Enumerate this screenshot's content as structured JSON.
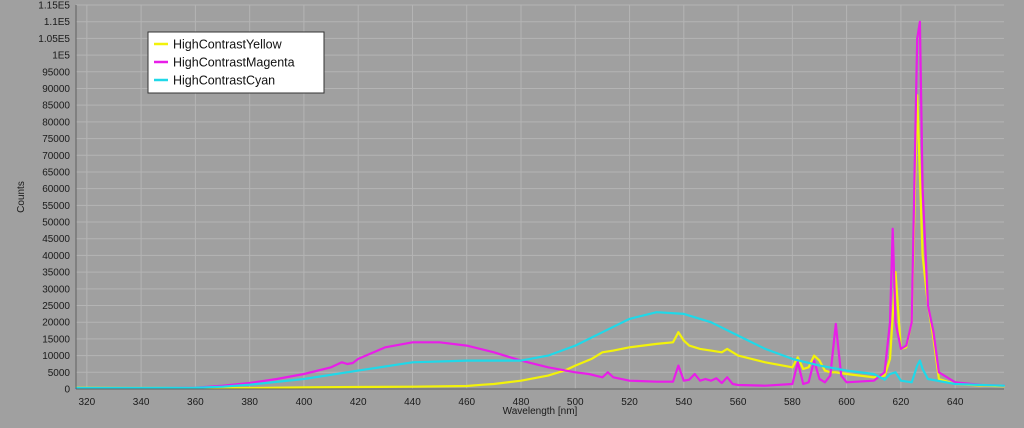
{
  "chart_data": {
    "type": "line",
    "title": "",
    "xlabel": "Wavelength [nm]",
    "ylabel": "Counts",
    "xlim": [
      316,
      658
    ],
    "ylim": [
      0,
      115000
    ],
    "grid": true,
    "legend_position": "top-left",
    "x_ticks": [
      320,
      340,
      360,
      380,
      400,
      420,
      440,
      460,
      480,
      500,
      520,
      540,
      560,
      580,
      600,
      620,
      640
    ],
    "x_tick_labels": [
      "320",
      "340",
      "360",
      "380",
      "400",
      "420",
      "440",
      "460",
      "480",
      "500",
      "520",
      "540",
      "560",
      "580",
      "600",
      "620",
      "640"
    ],
    "y_ticks": [
      0,
      5000,
      10000,
      15000,
      20000,
      25000,
      30000,
      35000,
      40000,
      45000,
      50000,
      55000,
      60000,
      65000,
      70000,
      75000,
      80000,
      85000,
      90000,
      95000,
      100000,
      105000,
      110000,
      115000
    ],
    "y_tick_labels": [
      "0",
      "5000",
      "10000",
      "15000",
      "20000",
      "25000",
      "30000",
      "35000",
      "40000",
      "45000",
      "50000",
      "55000",
      "60000",
      "65000",
      "70000",
      "75000",
      "80000",
      "85000",
      "90000",
      "95000",
      "1E5",
      "1.05E5",
      "1.1E5",
      "1.15E5"
    ],
    "series": [
      {
        "name": "HighContrastYellow",
        "color": "#f2f20a",
        "x": [
          316,
          340,
          360,
          380,
          400,
          420,
          440,
          460,
          466,
          470,
          480,
          490,
          496,
          500,
          506,
          510,
          514,
          520,
          530,
          536,
          538,
          540,
          542,
          546,
          550,
          554,
          556,
          560,
          570,
          580,
          582,
          584,
          586,
          588,
          590,
          592,
          594,
          596,
          600,
          610,
          614,
          616,
          618,
          620,
          622,
          624,
          626,
          628,
          630,
          632,
          634,
          640,
          650,
          658
        ],
        "y": [
          400,
          300,
          300,
          300,
          500,
          600,
          700,
          900,
          1300,
          1500,
          2500,
          4000,
          5500,
          7000,
          9000,
          11000,
          11500,
          12500,
          13500,
          14000,
          17000,
          14500,
          13000,
          12000,
          11500,
          11000,
          12000,
          10000,
          8000,
          6500,
          9500,
          6000,
          6500,
          10000,
          8500,
          5500,
          5000,
          5000,
          4500,
          3500,
          4000,
          9000,
          35000,
          12000,
          12500,
          20000,
          88000,
          40000,
          25000,
          15000,
          3000,
          1500,
          1000,
          800
        ]
      },
      {
        "name": "HighContrastMagenta",
        "color": "#e81ee8",
        "x": [
          316,
          340,
          360,
          370,
          380,
          390,
          400,
          410,
          414,
          416,
          418,
          420,
          430,
          440,
          450,
          460,
          470,
          480,
          490,
          500,
          505,
          510,
          512,
          514,
          520,
          530,
          536,
          538,
          540,
          542,
          544,
          546,
          548,
          550,
          552,
          554,
          556,
          558,
          560,
          570,
          580,
          582,
          584,
          586,
          588,
          590,
          592,
          594,
          596,
          598,
          600,
          610,
          614,
          616,
          617,
          618,
          620,
          622,
          624,
          626,
          627,
          628,
          630,
          632,
          634,
          640,
          650,
          658
        ],
        "y": [
          200,
          200,
          400,
          1000,
          1800,
          3000,
          4500,
          6500,
          8000,
          7500,
          7800,
          9000,
          12500,
          14000,
          14000,
          13000,
          11000,
          8500,
          6500,
          5000,
          4500,
          3500,
          5000,
          3500,
          2500,
          2200,
          2200,
          7000,
          2500,
          2800,
          4500,
          2500,
          3000,
          2500,
          3200,
          1800,
          3500,
          1500,
          1200,
          1000,
          1500,
          8000,
          1500,
          2000,
          8500,
          3000,
          2000,
          4000,
          19500,
          4000,
          2000,
          2500,
          5000,
          20000,
          48000,
          20000,
          12000,
          13000,
          20000,
          105000,
          110000,
          60000,
          25000,
          17000,
          5000,
          2000,
          1200,
          1000
        ]
      },
      {
        "name": "HighContrastCyan",
        "color": "#20d8e8",
        "x": [
          316,
          340,
          360,
          370,
          380,
          400,
          420,
          440,
          460,
          480,
          490,
          500,
          510,
          520,
          530,
          540,
          550,
          560,
          570,
          580,
          590,
          600,
          610,
          614,
          616,
          618,
          620,
          624,
          626,
          627,
          628,
          630,
          640,
          650,
          658
        ],
        "y": [
          300,
          300,
          400,
          700,
          1300,
          3000,
          5500,
          8000,
          8500,
          8500,
          10000,
          13000,
          17000,
          21000,
          23000,
          22500,
          20000,
          16000,
          12000,
          9000,
          7000,
          5500,
          4500,
          2800,
          4500,
          5000,
          2500,
          2000,
          7000,
          8500,
          6000,
          3000,
          1500,
          1200,
          1000
        ]
      }
    ]
  }
}
